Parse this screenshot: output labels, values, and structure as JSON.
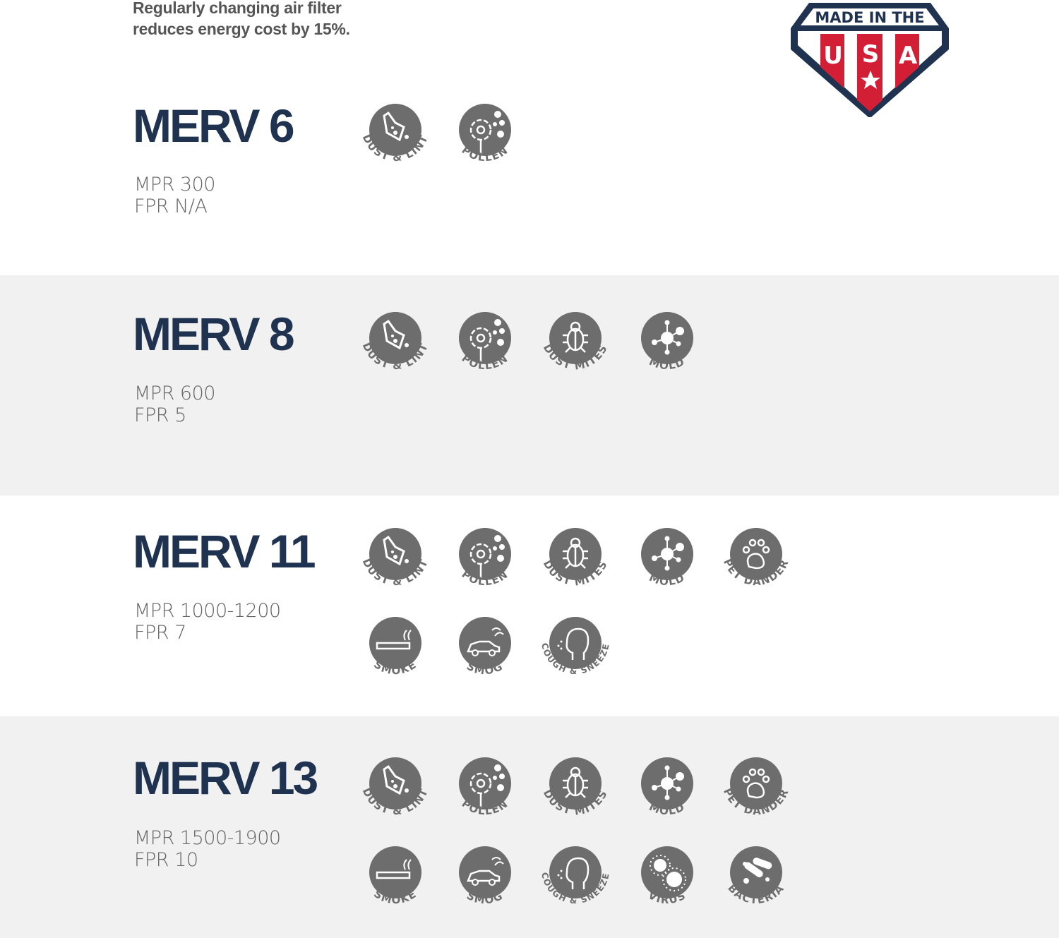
{
  "tagline": [
    "Regularly changing air filter",
    "reduces energy cost by 15%."
  ],
  "badge": {
    "top": "MADE IN THE",
    "letters": [
      "U",
      "S",
      "A"
    ],
    "colors": {
      "navy": "#1f3350",
      "red": "#d21f36"
    }
  },
  "colors": {
    "title": "#1f3350",
    "icon": "#6d6d6d",
    "band_alt": "#f1f1f1"
  },
  "sections": [
    {
      "title": "MERV 6",
      "mpr": "MPR 300",
      "fpr": "FPR N/A",
      "icons": [
        [
          "dust-lint",
          "DUST & LINT"
        ],
        [
          "pollen",
          "POLLEN"
        ]
      ]
    },
    {
      "title": "MERV 8",
      "mpr": "MPR 600",
      "fpr": "FPR 5",
      "icons": [
        [
          "dust-lint",
          "DUST & LINT"
        ],
        [
          "pollen",
          "POLLEN"
        ],
        [
          "dust-mites",
          "DUST  MITES"
        ],
        [
          "mold",
          "MOLD"
        ]
      ]
    },
    {
      "title": "MERV 11",
      "mpr": "MPR 1000-1200",
      "fpr": "FPR 7",
      "icons": [
        [
          "dust-lint",
          "DUST & LINT"
        ],
        [
          "pollen",
          "POLLEN"
        ],
        [
          "dust-mites",
          "DUST  MITES"
        ],
        [
          "mold",
          "MOLD"
        ],
        [
          "pet-dander",
          "PET DANDER"
        ],
        [
          "smoke",
          "SMOKE"
        ],
        [
          "smog",
          "SMOG"
        ],
        [
          "cough-sneeze",
          "COUGH & SNEEZE"
        ]
      ]
    },
    {
      "title": "MERV 13",
      "mpr": "MPR 1500-1900",
      "fpr": "FPR 10",
      "icons": [
        [
          "dust-lint",
          "DUST & LINT"
        ],
        [
          "pollen",
          "POLLEN"
        ],
        [
          "dust-mites",
          "DUST  MITES"
        ],
        [
          "mold",
          "MOLD"
        ],
        [
          "pet-dander",
          "PET DANDER"
        ],
        [
          "smoke",
          "SMOKE"
        ],
        [
          "smog",
          "SMOG"
        ],
        [
          "cough-sneeze",
          "COUGH & SNEEZE"
        ],
        [
          "virus",
          "VIRUS"
        ],
        [
          "bacteria",
          "BACTERIA"
        ]
      ]
    }
  ]
}
